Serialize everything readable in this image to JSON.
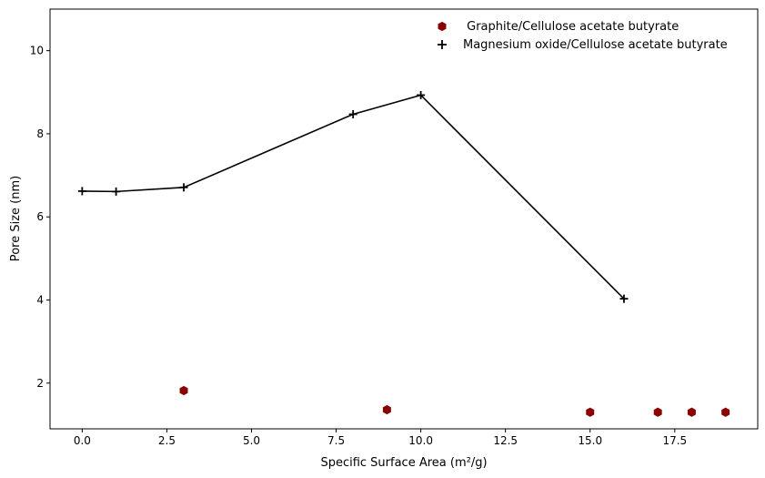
{
  "chart_data": {
    "type": "scatter",
    "xlabel": "Specific Surface Area (m²/g)",
    "ylabel": "Pore Size (nm)",
    "xlim": [
      -0.95,
      19.95
    ],
    "ylim": [
      0.9,
      11.0
    ],
    "xticks": [
      0.0,
      2.5,
      5.0,
      7.5,
      10.0,
      12.5,
      15.0,
      17.5
    ],
    "xtick_labels": [
      "0.0",
      "2.5",
      "5.0",
      "7.5",
      "10.0",
      "12.5",
      "15.0",
      "17.5"
    ],
    "yticks": [
      2,
      4,
      6,
      8,
      10
    ],
    "ytick_labels": [
      "2",
      "4",
      "6",
      "8",
      "10"
    ],
    "grid": false,
    "legend_position": "top-right",
    "series": [
      {
        "name": " Graphite/Cellulose acetate butyrate",
        "marker": "hexagon",
        "line": false,
        "color": "#8b0000",
        "x": [
          3,
          9,
          15,
          17,
          18,
          19
        ],
        "y": [
          1.82,
          1.36,
          1.3,
          1.3,
          1.3,
          1.3
        ]
      },
      {
        "name": "Magnesium oxide/Cellulose acetate butyrate",
        "marker": "plus",
        "line": true,
        "color": "#000000",
        "x": [
          0,
          1,
          3,
          8,
          10,
          16
        ],
        "y": [
          6.62,
          6.61,
          6.71,
          8.47,
          8.93,
          4.03
        ]
      }
    ]
  }
}
